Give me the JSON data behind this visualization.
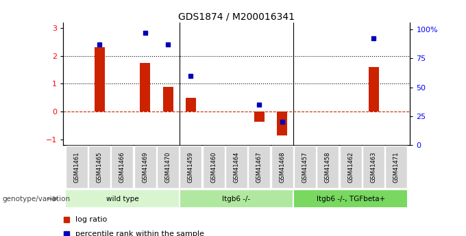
{
  "title": "GDS1874 / M200016341",
  "samples": [
    "GSM41461",
    "GSM41465",
    "GSM41466",
    "GSM41469",
    "GSM41470",
    "GSM41459",
    "GSM41460",
    "GSM41464",
    "GSM41467",
    "GSM41468",
    "GSM41457",
    "GSM41458",
    "GSM41462",
    "GSM41463",
    "GSM41471"
  ],
  "log_ratio": [
    0,
    2.3,
    0,
    1.75,
    0.9,
    0.5,
    0,
    0,
    -0.35,
    -0.85,
    0,
    0,
    0,
    1.6,
    0
  ],
  "percentile": [
    null,
    87,
    null,
    97,
    87,
    60,
    null,
    null,
    35,
    20,
    null,
    null,
    null,
    92,
    null
  ],
  "groups": [
    {
      "label": "wild type",
      "start": 0,
      "end": 5,
      "color": "#d8f5d0"
    },
    {
      "label": "ltgb6 -/-",
      "start": 5,
      "end": 10,
      "color": "#b0e8a0"
    },
    {
      "label": "ltgb6 -/-, TGFbeta+",
      "start": 10,
      "end": 15,
      "color": "#78d860"
    }
  ],
  "bar_color_red": "#cc2200",
  "dot_color_blue": "#0000bb",
  "left_ylim": [
    -1.2,
    3.2
  ],
  "right_ylim": [
    0,
    106
  ],
  "yticks_left": [
    -1,
    0,
    1,
    2,
    3
  ],
  "yticks_right_vals": [
    0,
    25,
    50,
    75,
    100
  ],
  "yticks_right_labels": [
    "0",
    "25",
    "50",
    "75",
    "100%"
  ],
  "legend_items": [
    "log ratio",
    "percentile rank within the sample"
  ],
  "legend_colors": [
    "#cc2200",
    "#0000bb"
  ],
  "genotype_label": "genotype/variation",
  "sample_box_color": "#d8d8d8",
  "bar_width": 0.45
}
